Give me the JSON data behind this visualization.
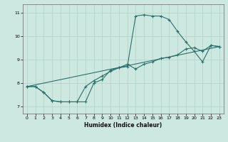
{
  "title": "",
  "xlabel": "Humidex (Indice chaleur)",
  "ylabel": "",
  "background_color": "#cce8e0",
  "grid_color": "#b0d0c8",
  "line_color": "#2a7068",
  "xlim": [
    -0.5,
    23.5
  ],
  "ylim": [
    6.7,
    11.35
  ],
  "xticks": [
    0,
    1,
    2,
    3,
    4,
    5,
    6,
    7,
    8,
    9,
    10,
    11,
    12,
    13,
    14,
    15,
    16,
    17,
    18,
    19,
    20,
    21,
    22,
    23
  ],
  "yticks": [
    7,
    8,
    9,
    10,
    11
  ],
  "line1_x": [
    0,
    1,
    2,
    3,
    4,
    5,
    6,
    7,
    8,
    9,
    10,
    11,
    12,
    13,
    14,
    15,
    16,
    17,
    18,
    19,
    20,
    21,
    22,
    23
  ],
  "line1_y": [
    7.85,
    7.85,
    7.6,
    7.25,
    7.2,
    7.2,
    7.2,
    7.2,
    8.0,
    8.15,
    8.55,
    8.65,
    8.7,
    10.85,
    10.9,
    10.85,
    10.85,
    10.7,
    10.2,
    9.75,
    9.35,
    8.9,
    9.6,
    9.55
  ],
  "line2_x": [
    0,
    1,
    2,
    3,
    4,
    5,
    6,
    7,
    8,
    9,
    10,
    11,
    12,
    13,
    14,
    15,
    16,
    17,
    18,
    19,
    20,
    21,
    22,
    23
  ],
  "line2_y": [
    7.85,
    7.85,
    7.6,
    7.25,
    7.2,
    7.2,
    7.2,
    7.85,
    8.1,
    8.3,
    8.5,
    8.65,
    8.8,
    8.6,
    8.8,
    8.9,
    9.05,
    9.1,
    9.2,
    9.45,
    9.5,
    9.35,
    9.6,
    9.55
  ],
  "line3_x": [
    0,
    23
  ],
  "line3_y": [
    7.85,
    9.55
  ]
}
